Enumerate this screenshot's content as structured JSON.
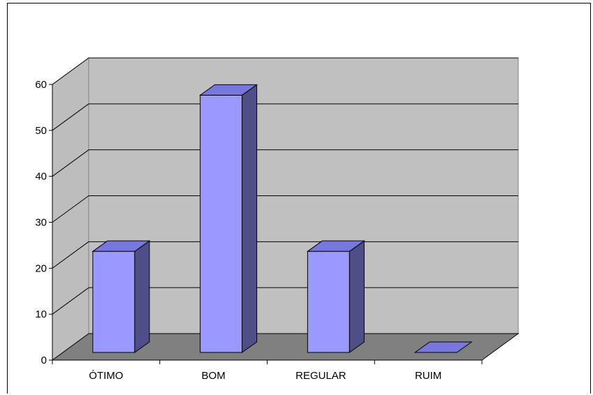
{
  "chart_data": {
    "type": "bar",
    "style": "3d-column",
    "title": "",
    "xlabel": "",
    "ylabel": "",
    "categories": [
      "ÓTIMO",
      "BOM",
      "REGULAR",
      "RUIM"
    ],
    "values": [
      22,
      56,
      22,
      0
    ],
    "ylim": [
      0,
      60
    ],
    "yticks": [
      "0",
      "10",
      "20",
      "30",
      "40",
      "50",
      "60"
    ],
    "grid": true,
    "legend": "none",
    "colors": {
      "bar_front": "#9999ff",
      "bar_top": "#7777dd",
      "bar_side": "#4e4e88",
      "back_wall": "#c0c0c0",
      "side_wall": "#bdbdbd",
      "floor": "#808080",
      "gridline": "#000000"
    }
  }
}
